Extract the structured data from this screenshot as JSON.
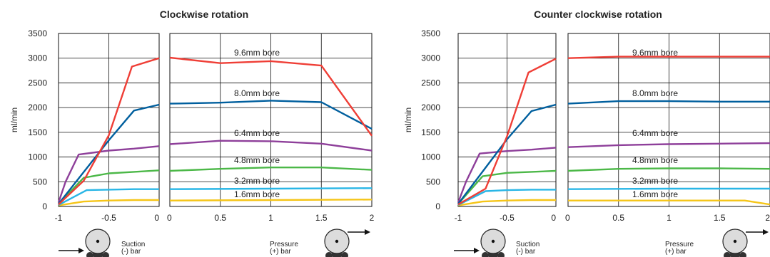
{
  "colors": {
    "1.6mm bore": "#f5c518",
    "3.2mm bore": "#29b6e6",
    "4.8mm bore": "#4cb848",
    "6.4mm bore": "#8e3f9a",
    "8.0mm bore": "#005f9e",
    "9.6mm bore": "#ef3e36",
    "grid": "#111111"
  },
  "pump_icons": [
    "pump-rotor-icon",
    "flow-arrow-icon"
  ],
  "chart_data": [
    {
      "type": "line",
      "title": "Clockwise rotation",
      "ylabel": "ml/min",
      "ylim": [
        0,
        3500
      ],
      "y_ticks": [
        "0",
        "500",
        "1000",
        "1500",
        "2000",
        "2500",
        "3000",
        "3500"
      ],
      "grid": true,
      "panels": [
        {
          "name": "suction",
          "xlim": [
            -1,
            0
          ],
          "x_ticks": [
            "-1",
            "-0.5",
            "0"
          ],
          "caption": [
            "Suction",
            "(-) bar"
          ],
          "series": [
            {
              "name": "1.6mm bore",
              "points": [
                [
                  -1,
                  20
                ],
                [
                  -0.75,
                  100
                ],
                [
                  -0.5,
                  120
                ],
                [
                  -0.25,
                  130
                ],
                [
                  0,
                  130
                ]
              ]
            },
            {
              "name": "3.2mm bore",
              "points": [
                [
                  -1,
                  30
                ],
                [
                  -0.72,
                  330
                ],
                [
                  -0.5,
                  340
                ],
                [
                  -0.25,
                  350
                ],
                [
                  0,
                  350
                ]
              ]
            },
            {
              "name": "4.8mm bore",
              "points": [
                [
                  -1,
                  50
                ],
                [
                  -0.75,
                  580
                ],
                [
                  -0.5,
                  670
                ],
                [
                  -0.25,
                  700
                ],
                [
                  0,
                  730
                ]
              ]
            },
            {
              "name": "6.4mm bore",
              "points": [
                [
                  -1,
                  80
                ],
                [
                  -0.93,
                  500
                ],
                [
                  -0.8,
                  1050
                ],
                [
                  -0.5,
                  1130
                ],
                [
                  -0.25,
                  1170
                ],
                [
                  0,
                  1220
                ]
              ]
            },
            {
              "name": "8.0mm bore",
              "points": [
                [
                  -1,
                  50
                ],
                [
                  -0.5,
                  1340
                ],
                [
                  -0.25,
                  1940
                ],
                [
                  0,
                  2060
                ]
              ]
            },
            {
              "name": "9.6mm bore",
              "points": [
                [
                  -1,
                  40
                ],
                [
                  -0.75,
                  520
                ],
                [
                  -0.5,
                  1440
                ],
                [
                  -0.27,
                  2830
                ],
                [
                  0,
                  3000
                ]
              ]
            }
          ]
        },
        {
          "name": "pressure",
          "xlim": [
            0,
            2
          ],
          "x_ticks": [
            "0",
            "0.5",
            "1",
            "1.5",
            "2"
          ],
          "caption": [
            "Pressure",
            "(+) bar"
          ],
          "series": [
            {
              "name": "1.6mm bore",
              "points": [
                [
                  0,
                  120
                ],
                [
                  1,
                  130
                ],
                [
                  2,
                  140
                ]
              ]
            },
            {
              "name": "3.2mm bore",
              "points": [
                [
                  0,
                  350
                ],
                [
                  1,
                  360
                ],
                [
                  2,
                  370
                ]
              ]
            },
            {
              "name": "4.8mm bore",
              "points": [
                [
                  0,
                  720
                ],
                [
                  0.5,
                  760
                ],
                [
                  1,
                  790
                ],
                [
                  1.5,
                  790
                ],
                [
                  2,
                  740
                ]
              ]
            },
            {
              "name": "6.4mm bore",
              "points": [
                [
                  0,
                  1260
                ],
                [
                  0.5,
                  1330
                ],
                [
                  1,
                  1320
                ],
                [
                  1.5,
                  1270
                ],
                [
                  2,
                  1130
                ]
              ]
            },
            {
              "name": "8.0mm bore",
              "points": [
                [
                  0,
                  2080
                ],
                [
                  0.5,
                  2100
                ],
                [
                  1,
                  2140
                ],
                [
                  1.5,
                  2110
                ],
                [
                  2,
                  1570
                ]
              ]
            },
            {
              "name": "9.6mm bore",
              "points": [
                [
                  0,
                  3010
                ],
                [
                  0.5,
                  2900
                ],
                [
                  1,
                  2940
                ],
                [
                  1.5,
                  2850
                ],
                [
                  2,
                  1430
                ]
              ]
            }
          ]
        }
      ],
      "series_labels": [
        "1.6mm bore",
        "3.2mm bore",
        "4.8mm bore",
        "6.4mm bore",
        "8.0mm bore",
        "9.6mm bore"
      ]
    },
    {
      "type": "line",
      "title": "Counter clockwise rotation",
      "ylabel": "ml/min",
      "ylim": [
        0,
        3500
      ],
      "y_ticks": [
        "0",
        "500",
        "1000",
        "1500",
        "2000",
        "2500",
        "3000",
        "3500"
      ],
      "grid": true,
      "panels": [
        {
          "name": "suction",
          "xlim": [
            -1,
            0
          ],
          "x_ticks": [
            "-1",
            "-0.5",
            "0"
          ],
          "caption": [
            "Suction",
            "(-) bar"
          ],
          "series": [
            {
              "name": "1.6mm bore",
              "points": [
                [
                  -1,
                  20
                ],
                [
                  -0.75,
                  100
                ],
                [
                  -0.5,
                  120
                ],
                [
                  -0.25,
                  130
                ],
                [
                  0,
                  130
                ]
              ]
            },
            {
              "name": "3.2mm bore",
              "points": [
                [
                  -1,
                  30
                ],
                [
                  -0.72,
                  310
                ],
                [
                  -0.5,
                  330
                ],
                [
                  -0.25,
                  340
                ],
                [
                  0,
                  340
                ]
              ]
            },
            {
              "name": "4.8mm bore",
              "points": [
                [
                  -1,
                  50
                ],
                [
                  -0.75,
                  610
                ],
                [
                  -0.5,
                  680
                ],
                [
                  -0.25,
                  700
                ],
                [
                  0,
                  720
                ]
              ]
            },
            {
              "name": "6.4mm bore",
              "points": [
                [
                  -1,
                  80
                ],
                [
                  -0.92,
                  500
                ],
                [
                  -0.78,
                  1070
                ],
                [
                  -0.5,
                  1120
                ],
                [
                  -0.25,
                  1150
                ],
                [
                  0,
                  1190
                ]
              ]
            },
            {
              "name": "8.0mm bore",
              "points": [
                [
                  -1,
                  50
                ],
                [
                  -0.5,
                  1360
                ],
                [
                  -0.25,
                  1930
                ],
                [
                  0,
                  2060
                ]
              ]
            },
            {
              "name": "9.6mm bore",
              "points": [
                [
                  -1,
                  40
                ],
                [
                  -0.72,
                  360
                ],
                [
                  -0.5,
                  1420
                ],
                [
                  -0.28,
                  2710
                ],
                [
                  0,
                  2990
                ]
              ]
            }
          ]
        },
        {
          "name": "pressure",
          "xlim": [
            0,
            2
          ],
          "x_ticks": [
            "0",
            "0.5",
            "1",
            "1.5",
            "2"
          ],
          "caption": [
            "Pressure",
            "(+) bar"
          ],
          "series": [
            {
              "name": "1.6mm bore",
              "points": [
                [
                  0,
                  120
                ],
                [
                  0.5,
                  120
                ],
                [
                  1,
                  120
                ],
                [
                  1.5,
                  120
                ],
                [
                  1.75,
                  120
                ],
                [
                  2,
                  40
                ]
              ]
            },
            {
              "name": "3.2mm bore",
              "points": [
                [
                  0,
                  350
                ],
                [
                  1,
                  360
                ],
                [
                  2,
                  360
                ]
              ]
            },
            {
              "name": "4.8mm bore",
              "points": [
                [
                  0,
                  720
                ],
                [
                  0.5,
                  760
                ],
                [
                  1,
                  770
                ],
                [
                  1.5,
                  770
                ],
                [
                  2,
                  760
                ]
              ]
            },
            {
              "name": "6.4mm bore",
              "points": [
                [
                  0,
                  1200
                ],
                [
                  0.5,
                  1240
                ],
                [
                  1,
                  1260
                ],
                [
                  1.5,
                  1270
                ],
                [
                  2,
                  1280
                ]
              ]
            },
            {
              "name": "8.0mm bore",
              "points": [
                [
                  0,
                  2080
                ],
                [
                  0.5,
                  2130
                ],
                [
                  1,
                  2130
                ],
                [
                  1.5,
                  2120
                ],
                [
                  2,
                  2120
                ]
              ]
            },
            {
              "name": "9.6mm bore",
              "points": [
                [
                  0,
                  3000
                ],
                [
                  0.5,
                  3030
                ],
                [
                  1,
                  3030
                ],
                [
                  1.5,
                  3030
                ],
                [
                  2,
                  3030
                ]
              ]
            }
          ]
        }
      ],
      "series_labels": [
        "1.6mm bore",
        "3.2mm bore",
        "4.8mm bore",
        "6.4mm bore",
        "8.0mm bore",
        "9.6mm bore"
      ]
    }
  ]
}
